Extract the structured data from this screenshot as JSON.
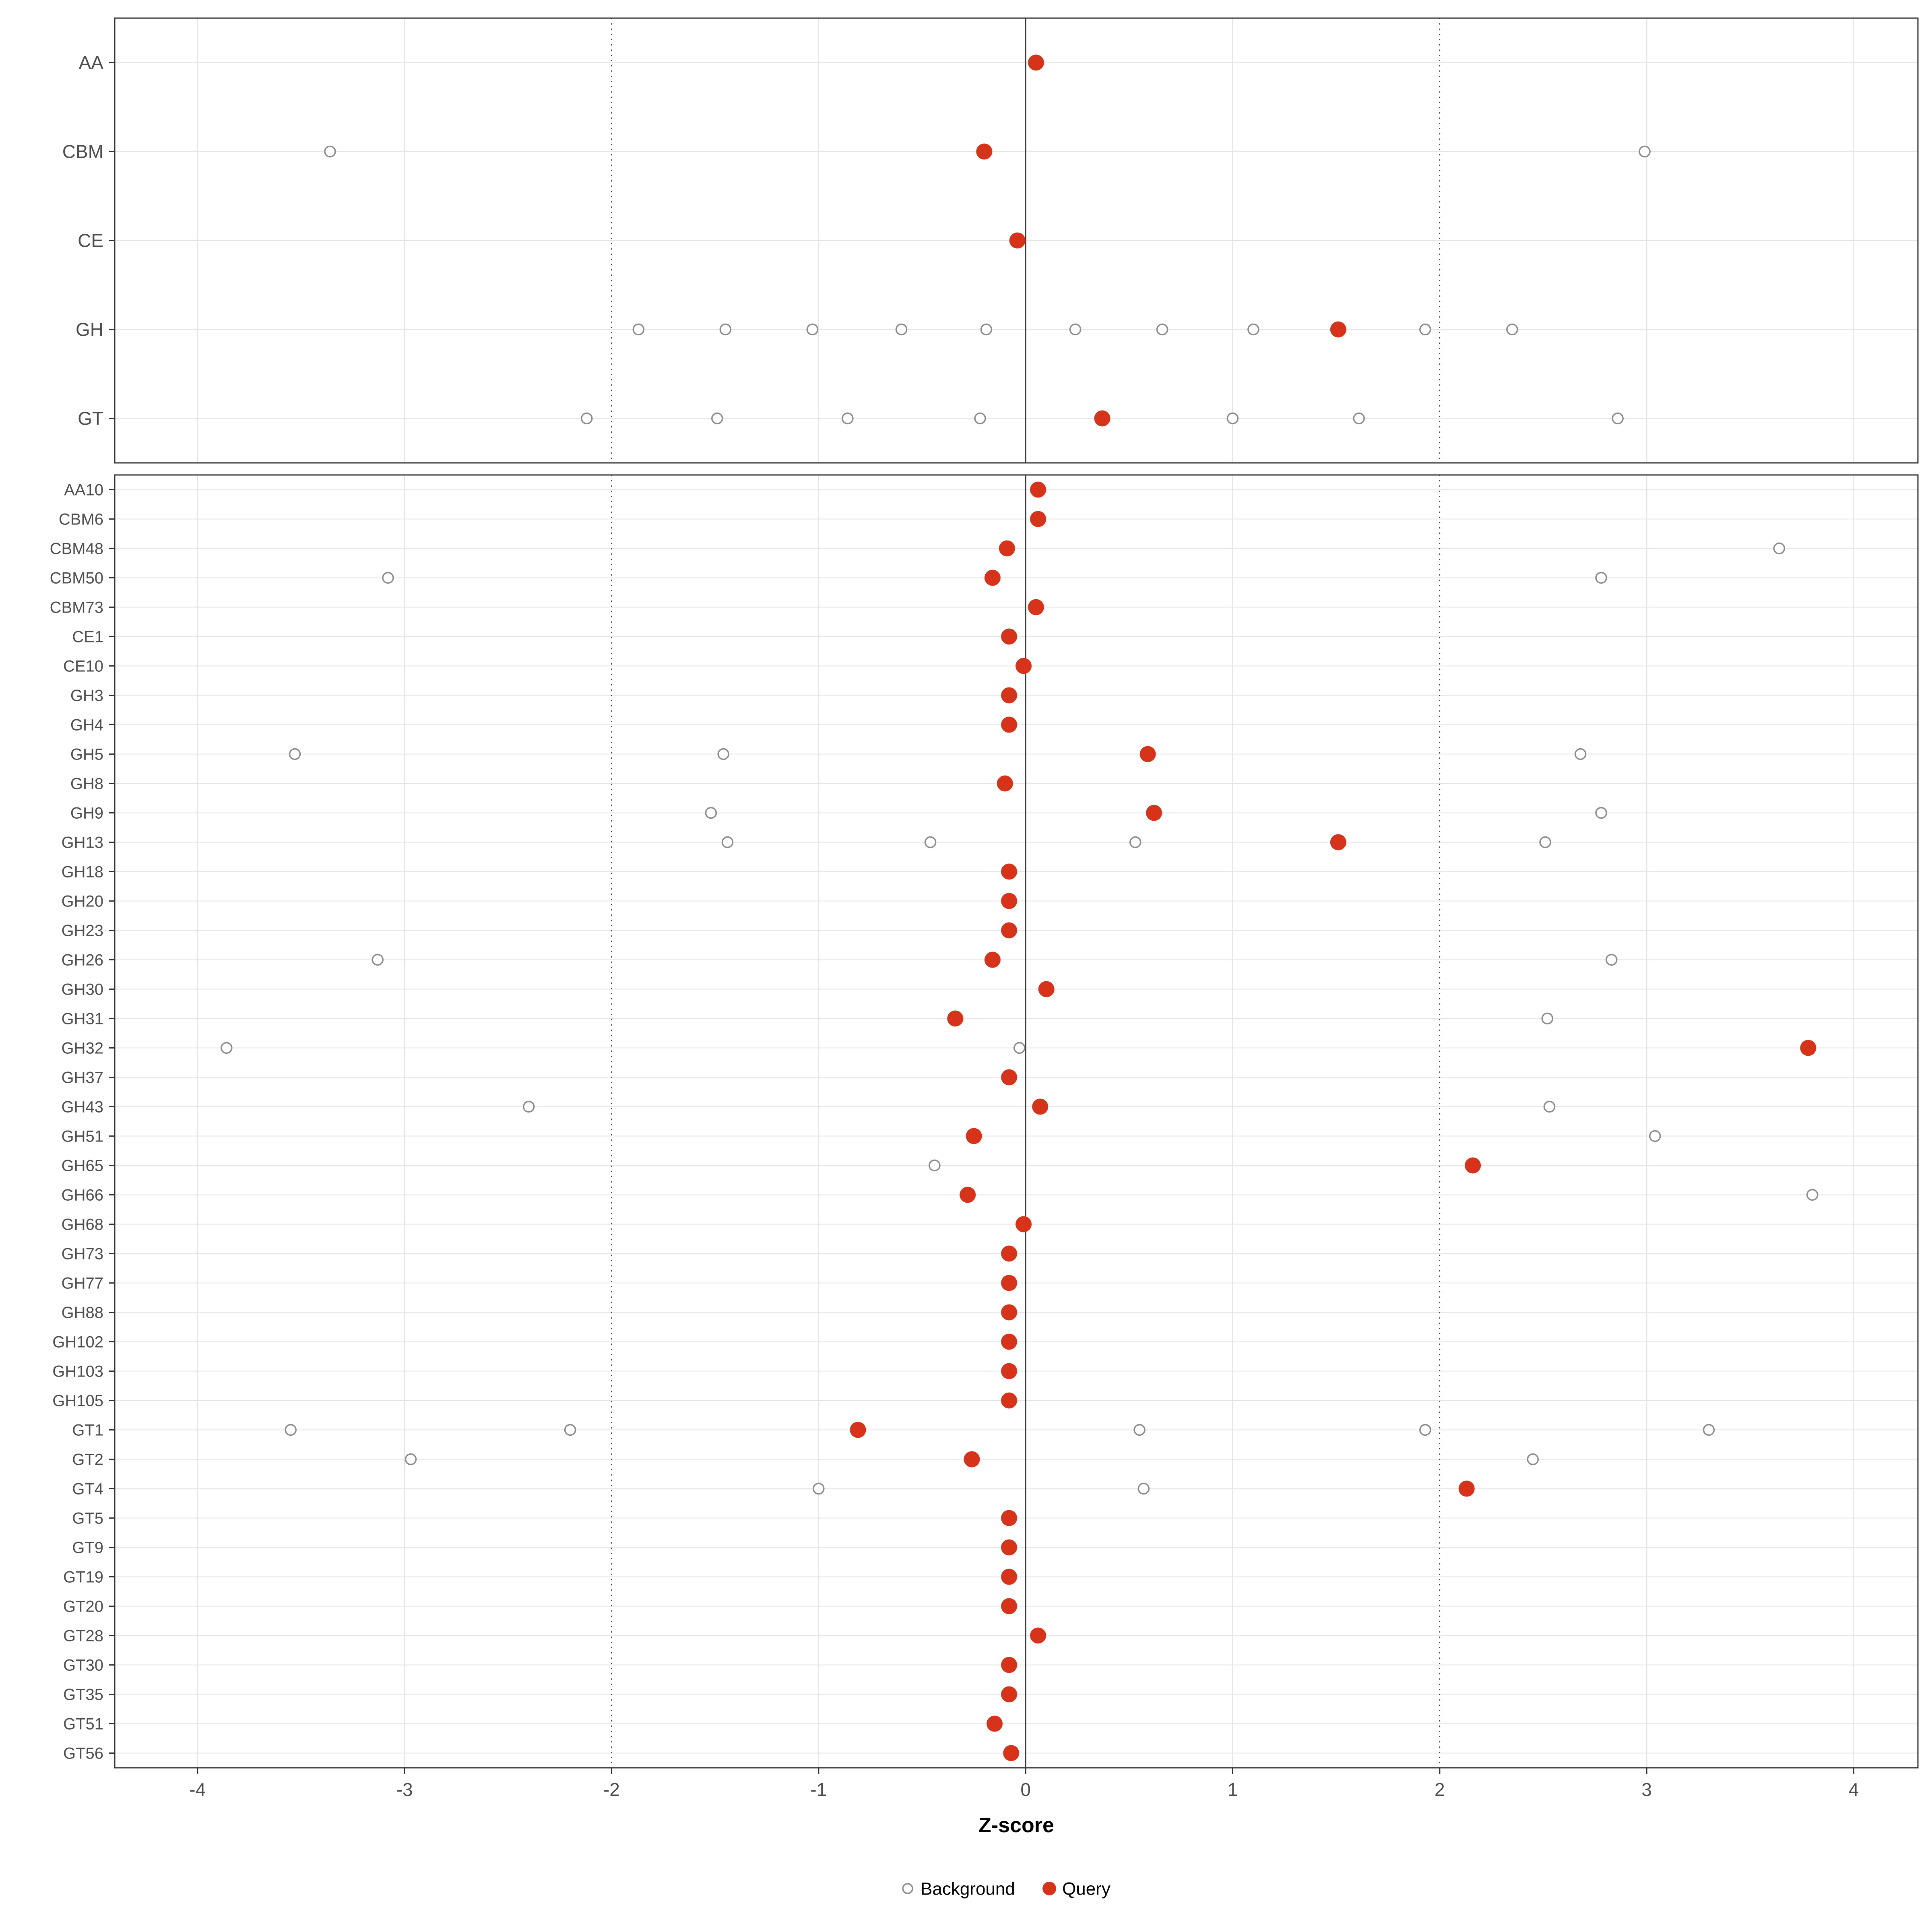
{
  "chart_data": {
    "type": "scatter",
    "title": "",
    "xlabel": "Z-score",
    "ylabel": "",
    "xlim": [
      -4.4,
      4.31
    ],
    "x_ticks": [
      -4,
      -3,
      -2,
      -1,
      0,
      1,
      2,
      3,
      4
    ],
    "vline_solid": 0,
    "vlines_dotted": [
      -2,
      2
    ],
    "grid": true,
    "legend_position": "bottom",
    "colors": {
      "query": "#d7331b",
      "background_stroke": "#8c8c8c",
      "grid": "#e4e4e4",
      "dark_line": "#3c3c3c",
      "axis": "#333333",
      "axis_text": "#4d4d4d",
      "border": "#333333"
    },
    "legend": [
      {
        "label": "Background",
        "filled": false,
        "color": "#8c8c8c"
      },
      {
        "label": "Query",
        "filled": true,
        "color": "#d7331b"
      }
    ],
    "panels": [
      {
        "name": "family-class-panel",
        "rows": [
          {
            "label": "AA",
            "query": 0.05,
            "background": []
          },
          {
            "label": "CBM",
            "query": -0.2,
            "background": [
              -3.36,
              2.99
            ]
          },
          {
            "label": "CE",
            "query": -0.04,
            "background": []
          },
          {
            "label": "GH",
            "query": 1.51,
            "background": [
              -1.87,
              -1.45,
              -1.03,
              -0.6,
              -0.19,
              0.24,
              0.66,
              1.1,
              1.93,
              2.35
            ]
          },
          {
            "label": "GT",
            "query": 0.37,
            "background": [
              -2.12,
              -1.49,
              -0.86,
              -0.22,
              1.0,
              1.61,
              2.86
            ]
          }
        ]
      },
      {
        "name": "family-panel",
        "rows": [
          {
            "label": "AA10",
            "query": 0.06,
            "background": []
          },
          {
            "label": "CBM6",
            "query": 0.06,
            "background": []
          },
          {
            "label": "CBM48",
            "query": -0.09,
            "background": [
              3.64
            ]
          },
          {
            "label": "CBM50",
            "query": -0.16,
            "background": [
              -3.08,
              2.78
            ]
          },
          {
            "label": "CBM73",
            "query": 0.05,
            "background": []
          },
          {
            "label": "CE1",
            "query": -0.08,
            "background": []
          },
          {
            "label": "CE10",
            "query": -0.01,
            "background": []
          },
          {
            "label": "GH3",
            "query": -0.08,
            "background": []
          },
          {
            "label": "GH4",
            "query": -0.08,
            "background": []
          },
          {
            "label": "GH5",
            "query": 0.59,
            "background": [
              -3.53,
              -1.46,
              2.68
            ]
          },
          {
            "label": "GH8",
            "query": -0.1,
            "background": []
          },
          {
            "label": "GH9",
            "query": 0.62,
            "background": [
              -1.52,
              2.78
            ]
          },
          {
            "label": "GH13",
            "query": 1.51,
            "background": [
              -1.44,
              -0.46,
              0.53,
              2.51
            ]
          },
          {
            "label": "GH18",
            "query": -0.08,
            "background": []
          },
          {
            "label": "GH20",
            "query": -0.08,
            "background": []
          },
          {
            "label": "GH23",
            "query": -0.08,
            "background": []
          },
          {
            "label": "GH26",
            "query": -0.16,
            "background": [
              -3.13,
              2.83
            ]
          },
          {
            "label": "GH30",
            "query": 0.1,
            "background": []
          },
          {
            "label": "GH31",
            "query": -0.34,
            "background": [
              2.52
            ]
          },
          {
            "label": "GH32",
            "query": 3.78,
            "background": [
              -3.86,
              -0.03
            ]
          },
          {
            "label": "GH37",
            "query": -0.08,
            "background": []
          },
          {
            "label": "GH43",
            "query": 0.07,
            "background": [
              -2.4,
              2.53
            ]
          },
          {
            "label": "GH51",
            "query": -0.25,
            "background": [
              3.04
            ]
          },
          {
            "label": "GH65",
            "query": 2.16,
            "background": [
              -0.44
            ]
          },
          {
            "label": "GH66",
            "query": -0.28,
            "background": [
              3.8
            ]
          },
          {
            "label": "GH68",
            "query": -0.01,
            "background": []
          },
          {
            "label": "GH73",
            "query": -0.08,
            "background": []
          },
          {
            "label": "GH77",
            "query": -0.08,
            "background": []
          },
          {
            "label": "GH88",
            "query": -0.08,
            "background": []
          },
          {
            "label": "GH102",
            "query": -0.08,
            "background": []
          },
          {
            "label": "GH103",
            "query": -0.08,
            "background": []
          },
          {
            "label": "GH105",
            "query": -0.08,
            "background": []
          },
          {
            "label": "GT1",
            "query": -0.81,
            "background": [
              -3.55,
              -2.2,
              0.55,
              1.93,
              3.3
            ]
          },
          {
            "label": "GT2",
            "query": -0.26,
            "background": [
              -2.97,
              2.45
            ]
          },
          {
            "label": "GT4",
            "query": 2.13,
            "background": [
              -1.0,
              0.57
            ]
          },
          {
            "label": "GT5",
            "query": -0.08,
            "background": []
          },
          {
            "label": "GT9",
            "query": -0.08,
            "background": []
          },
          {
            "label": "GT19",
            "query": -0.08,
            "background": []
          },
          {
            "label": "GT20",
            "query": -0.08,
            "background": []
          },
          {
            "label": "GT28",
            "query": 0.06,
            "background": []
          },
          {
            "label": "GT30",
            "query": -0.08,
            "background": []
          },
          {
            "label": "GT35",
            "query": -0.08,
            "background": []
          },
          {
            "label": "GT51",
            "query": -0.15,
            "background": []
          },
          {
            "label": "GT56",
            "query": -0.07,
            "background": []
          }
        ]
      }
    ]
  }
}
